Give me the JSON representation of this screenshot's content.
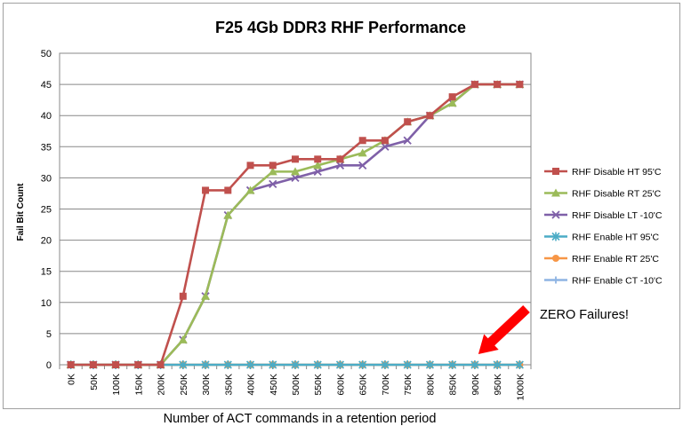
{
  "chart_data": {
    "type": "line",
    "title": "F25 4Gb DDR3 RHF Performance",
    "xlabel": "Number of ACT commands in a retention period",
    "ylabel": "Fail Bit Count",
    "ylim": [
      0,
      50
    ],
    "yticks": [
      0,
      5,
      10,
      15,
      20,
      25,
      30,
      35,
      40,
      45,
      50
    ],
    "grid": "horizontal",
    "legend_position": "right",
    "categories": [
      "0K",
      "50K",
      "100K",
      "150K",
      "200K",
      "250K",
      "300K",
      "350K",
      "400K",
      "450K",
      "500K",
      "550K",
      "600K",
      "650K",
      "700K",
      "750K",
      "800K",
      "850K",
      "900K",
      "950K",
      "1000K"
    ],
    "series": [
      {
        "name": "RHF Disable HT 95'C",
        "color": "#C0504D",
        "marker": "square",
        "values": [
          0,
          0,
          0,
          0,
          0,
          11,
          28,
          28,
          32,
          32,
          33,
          33,
          33,
          36,
          36,
          39,
          40,
          43,
          45,
          45,
          45
        ]
      },
      {
        "name": "RHF Disable RT 25'C",
        "color": "#9BBB59",
        "marker": "triangle",
        "values": [
          0,
          0,
          0,
          0,
          0,
          4,
          11,
          24,
          28,
          31,
          31,
          32,
          33,
          34,
          36,
          39,
          40,
          42,
          45,
          45,
          45
        ]
      },
      {
        "name": "RHF Disable LT -10'C",
        "color": "#7F60A8",
        "marker": "x",
        "values": [
          0,
          0,
          0,
          0,
          0,
          4,
          11,
          24,
          28,
          29,
          30,
          31,
          32,
          32,
          35,
          36,
          40,
          42,
          45,
          45,
          45
        ]
      },
      {
        "name": "RHF Enable HT 95'C",
        "color": "#4BACC6",
        "marker": "star",
        "values": [
          0,
          0,
          0,
          0,
          0,
          0,
          0,
          0,
          0,
          0,
          0,
          0,
          0,
          0,
          0,
          0,
          0,
          0,
          0,
          0,
          0
        ]
      },
      {
        "name": "RHF Enable RT 25'C",
        "color": "#F79646",
        "marker": "circle",
        "values": [
          0,
          0,
          0,
          0,
          0,
          0,
          0,
          0,
          0,
          0,
          0,
          0,
          0,
          0,
          0,
          0,
          0,
          0,
          0,
          0,
          0
        ]
      },
      {
        "name": "RHF Enable CT -10'C",
        "color": "#8EB4E3",
        "marker": "plus",
        "values": [
          0,
          0,
          0,
          0,
          0,
          0,
          0,
          0,
          0,
          0,
          0,
          0,
          0,
          0,
          0,
          0,
          0,
          0,
          0,
          0,
          0
        ]
      }
    ],
    "annotation": {
      "text": "ZERO Failures!",
      "arrow_color": "#FF0000",
      "points_to_category": "900K",
      "points_to_value": 0
    }
  }
}
